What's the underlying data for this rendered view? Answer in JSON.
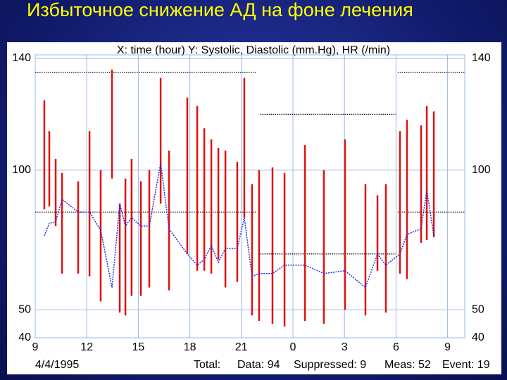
{
  "slide_title": "Избыточное снижение АД на фоне лечения",
  "chart_data": {
    "type": "range_bar",
    "title": "X: time (hour)  Y: Systolic, Diastolic (mm.Hg), HR (/min)",
    "x": [
      9.53,
      9.82,
      10.19,
      10.56,
      11.5,
      12.16,
      12.81,
      13.47,
      13.92,
      14.25,
      14.61,
      15.15,
      15.64,
      16.3,
      16.79,
      17.85,
      18.43,
      18.84,
      19.25,
      19.66,
      20.07,
      20.76,
      21.17,
      21.62,
      22.03,
      22.81,
      23.51,
      24.7,
      25.8,
      27.03,
      28.22,
      28.92,
      29.41,
      30.23,
      30.64,
      31.46,
      31.79,
      32.2
    ],
    "series": [
      {
        "color": "#e01010",
        "values": [
          125,
          114,
          104,
          99,
          96,
          114,
          100,
          136,
          88,
          97,
          104,
          96,
          100,
          133,
          107,
          126,
          123,
          115,
          111,
          108,
          107,
          103,
          133,
          95,
          100,
          101,
          99,
          109,
          100,
          111,
          95,
          91,
          95,
          114,
          118,
          116,
          123,
          121
        ]
      },
      {
        "color": "#e01010",
        "values": [
          86,
          87,
          80,
          63,
          63,
          62,
          53,
          97,
          49,
          48,
          55,
          55,
          58,
          88,
          57,
          70,
          64,
          64,
          63,
          68,
          58,
          60,
          83,
          48,
          46,
          45,
          44,
          46,
          45,
          50,
          48,
          64,
          49,
          63,
          61,
          74,
          75,
          76
        ]
      },
      {
        "color": "#2030e0",
        "values": [
          76.5,
          81,
          81.5,
          89.6,
          85,
          85,
          78.5,
          58,
          88,
          80,
          83,
          80,
          80,
          102.5,
          79,
          70,
          66,
          68,
          73,
          67,
          72,
          72,
          83,
          62,
          63,
          63,
          66,
          66,
          63,
          64,
          58,
          70,
          66,
          70,
          77,
          79,
          93,
          76.5
        ]
      }
    ],
    "xlim": [
      9,
      34
    ],
    "xticks": [
      9,
      12,
      15,
      18,
      21,
      {
        "value": 24,
        "label": "0"
      },
      {
        "value": 27,
        "label": "3"
      },
      {
        "value": 30,
        "label": "6"
      },
      {
        "value": 33,
        "label": "9"
      }
    ],
    "ylim": [
      40,
      140
    ],
    "yticks": [
      40,
      50,
      100,
      140
    ],
    "grid": true,
    "reference_lines": [
      {
        "value": 135,
        "xrange": [
          9,
          21.9
        ]
      },
      {
        "value": 135,
        "xrange": [
          30.1,
          34
        ]
      },
      {
        "value": 120,
        "xrange": [
          22.1,
          30
        ]
      },
      {
        "value": 85,
        "xrange": [
          9,
          21.9
        ]
      },
      {
        "value": 85,
        "xrange": [
          30.1,
          34
        ]
      },
      {
        "value": 70,
        "xrange": [
          22.1,
          30
        ]
      }
    ]
  },
  "footer": {
    "date": "4/4/1995",
    "total": "Total:",
    "data": "Data: 94",
    "suppressed": "Suppressed: 9",
    "meas": "Meas: 52",
    "event": "Event: 19"
  }
}
